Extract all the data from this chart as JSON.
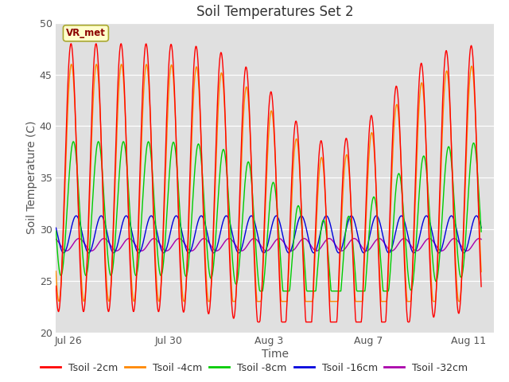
{
  "title": "Soil Temperatures Set 2",
  "xlabel": "Time",
  "ylabel": "Soil Temperature (C)",
  "ylim": [
    20,
    50
  ],
  "xlim_days": [
    0,
    17.5
  ],
  "x_ticks_labels": [
    "Jul 26",
    "Jul 30",
    "Aug 3",
    "Aug 7",
    "Aug 11"
  ],
  "x_ticks_days": [
    0.5,
    4.5,
    8.5,
    12.5,
    16.5
  ],
  "legend_labels": [
    "Tsoil -2cm",
    "Tsoil -4cm",
    "Tsoil -8cm",
    "Tsoil -16cm",
    "Tsoil -32cm"
  ],
  "line_colors": [
    "#ff0000",
    "#ff8800",
    "#00cc00",
    "#0000dd",
    "#aa00aa"
  ],
  "annotation_text": "VR_met",
  "bg_color": "#ffffff",
  "plot_bg_color": "#e0e0e0",
  "title_fontsize": 12,
  "axis_label_fontsize": 10,
  "tick_fontsize": 9,
  "legend_fontsize": 9
}
